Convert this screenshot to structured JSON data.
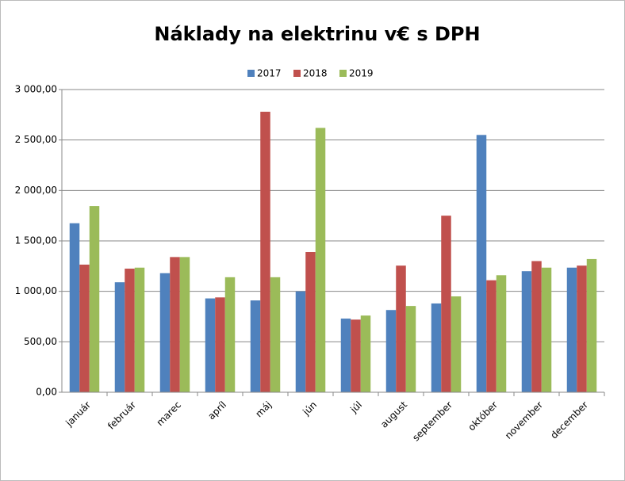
{
  "chart_data": {
    "type": "bar",
    "title": "Náklady na elektrinu v€ s DPH",
    "categories": [
      "január",
      "február",
      "marec",
      "apríl",
      "máj",
      "jún",
      "júl",
      "august",
      "september",
      "október",
      "november",
      "december"
    ],
    "series": [
      {
        "name": "2017",
        "color": "#4f81bd",
        "values": [
          1675,
          1090,
          1180,
          930,
          910,
          1000,
          730,
          815,
          880,
          2550,
          1200,
          1235
        ]
      },
      {
        "name": "2018",
        "color": "#c0504d",
        "values": [
          1265,
          1225,
          1340,
          940,
          2780,
          1390,
          720,
          1255,
          1750,
          1110,
          1300,
          1255
        ]
      },
      {
        "name": "2019",
        "color": "#9bbb59",
        "values": [
          1845,
          1235,
          1340,
          1140,
          1140,
          2620,
          760,
          855,
          950,
          1160,
          1235,
          1320
        ]
      }
    ],
    "ylim": [
      0,
      3000
    ],
    "yticks": [
      {
        "value": 0,
        "label": "0,00"
      },
      {
        "value": 500,
        "label": "500,00"
      },
      {
        "value": 1000,
        "label": "1 000,00"
      },
      {
        "value": 1500,
        "label": "1 500,00"
      },
      {
        "value": 2000,
        "label": "2 000,00"
      },
      {
        "value": 2500,
        "label": "2 500,00"
      },
      {
        "value": 3000,
        "label": "3 000,00"
      }
    ],
    "grid": true,
    "legend": "top"
  }
}
